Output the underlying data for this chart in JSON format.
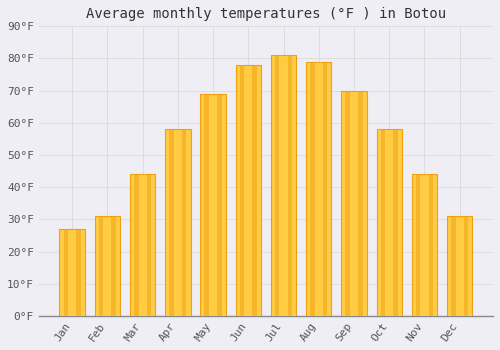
{
  "title": "Average monthly temperatures (°F ) in Botou",
  "months": [
    "Jan",
    "Feb",
    "Mar",
    "Apr",
    "May",
    "Jun",
    "Jul",
    "Aug",
    "Sep",
    "Oct",
    "Nov",
    "Dec"
  ],
  "values": [
    27,
    31,
    44,
    58,
    69,
    78,
    81,
    79,
    70,
    58,
    44,
    31
  ],
  "bar_color_center": "#FFCC44",
  "bar_color_edge": "#F0A010",
  "background_color": "#F0EEF5",
  "plot_bg_color": "#F0EEF5",
  "grid_color": "#DDDDDD",
  "title_fontsize": 10,
  "tick_fontsize": 8,
  "ylim": [
    0,
    90
  ],
  "yticks": [
    0,
    10,
    20,
    30,
    40,
    50,
    60,
    70,
    80,
    90
  ]
}
